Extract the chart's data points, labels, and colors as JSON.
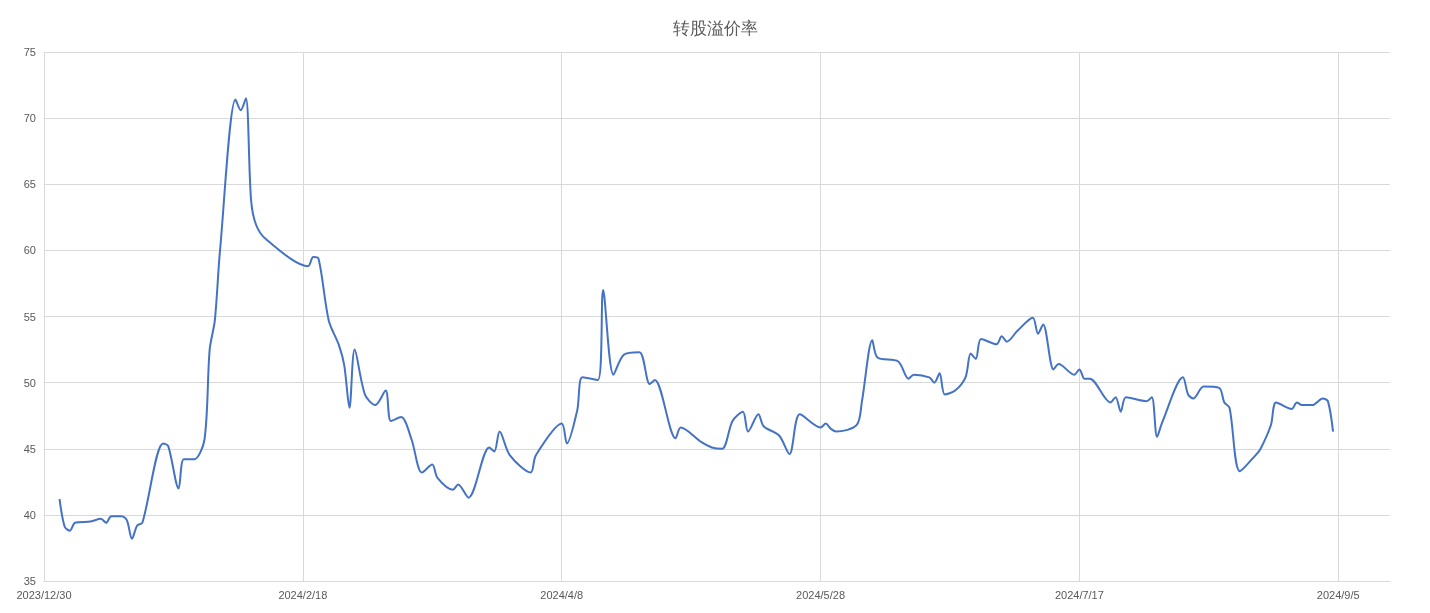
{
  "chart_data": {
    "type": "line",
    "title": "转股溢价率",
    "color": "#4472c4",
    "x": [
      "2024-01-02",
      "2024-01-03",
      "2024-01-04",
      "2024-01-05",
      "2024-01-08",
      "2024-01-10",
      "2024-01-11",
      "2024-01-12",
      "2024-01-14",
      "2024-01-15",
      "2024-01-16",
      "2024-01-17",
      "2024-01-18",
      "2024-01-22",
      "2024-01-23",
      "2024-01-25",
      "2024-01-26",
      "2024-01-28",
      "2024-01-30",
      "2024-01-31",
      "2024-02-01",
      "2024-02-02",
      "2024-02-05",
      "2024-02-06",
      "2024-02-07",
      "2024-02-08",
      "2024-02-09",
      "2024-02-11",
      "2024-02-19",
      "2024-02-20",
      "2024-02-21",
      "2024-02-23",
      "2024-02-25",
      "2024-02-26",
      "2024-02-27",
      "2024-02-28",
      "2024-03-01",
      "2024-03-03",
      "2024-03-05",
      "2024-03-06",
      "2024-03-08",
      "2024-03-10",
      "2024-03-12",
      "2024-03-14",
      "2024-03-15",
      "2024-03-18",
      "2024-03-19",
      "2024-03-21",
      "2024-03-25",
      "2024-03-26",
      "2024-03-27",
      "2024-03-29",
      "2024-04-02",
      "2024-04-03",
      "2024-04-08",
      "2024-04-09",
      "2024-04-11",
      "2024-04-12",
      "2024-04-15",
      "2024-04-16",
      "2024-04-18",
      "2024-04-20",
      "2024-04-23",
      "2024-04-25",
      "2024-04-26",
      "2024-04-30",
      "2024-05-01",
      "2024-05-05",
      "2024-05-07",
      "2024-05-09",
      "2024-05-11",
      "2024-05-13",
      "2024-05-14",
      "2024-05-16",
      "2024-05-17",
      "2024-05-20",
      "2024-05-22",
      "2024-05-24",
      "2024-05-28",
      "2024-05-29",
      "2024-05-30",
      "2024-05-31",
      "2024-06-04",
      "2024-06-05",
      "2024-06-07",
      "2024-06-08",
      "2024-06-12",
      "2024-06-14",
      "2024-06-15",
      "2024-06-18",
      "2024-06-19",
      "2024-06-20",
      "2024-06-21",
      "2024-06-23",
      "2024-06-25",
      "2024-06-26",
      "2024-06-27",
      "2024-06-28",
      "2024-07-01",
      "2024-07-02",
      "2024-07-03",
      "2024-07-05",
      "2024-07-08",
      "2024-07-09",
      "2024-07-10",
      "2024-07-12",
      "2024-07-13",
      "2024-07-16",
      "2024-07-17",
      "2024-07-18",
      "2024-07-19",
      "2024-07-23",
      "2024-07-24",
      "2024-07-25",
      "2024-07-26",
      "2024-07-30",
      "2024-07-31",
      "2024-08-01",
      "2024-08-02",
      "2024-08-06",
      "2024-08-07",
      "2024-08-08",
      "2024-08-10",
      "2024-08-13",
      "2024-08-14",
      "2024-08-15",
      "2024-08-17",
      "2024-08-20",
      "2024-08-21",
      "2024-08-23",
      "2024-08-24",
      "2024-08-27",
      "2024-08-28",
      "2024-08-29",
      "2024-08-31",
      "2024-09-02",
      "2024-09-03",
      "2024-09-04"
    ],
    "values": [
      41.2,
      39.1,
      38.8,
      39.4,
      39.5,
      39.7,
      39.4,
      39.9,
      39.9,
      39.6,
      38.2,
      39.2,
      39.4,
      45.4,
      45.2,
      42.0,
      44.2,
      44.2,
      45.7,
      52.5,
      54.7,
      60.0,
      71.4,
      70.6,
      71.5,
      63.8,
      61.9,
      60.8,
      58.8,
      59.5,
      59.4,
      54.7,
      52.8,
      51.3,
      48.1,
      52.5,
      49.1,
      48.3,
      49.4,
      47.1,
      47.4,
      45.7,
      43.2,
      43.8,
      42.8,
      41.9,
      42.3,
      41.3,
      45.1,
      44.8,
      46.3,
      44.5,
      43.2,
      44.5,
      46.9,
      45.4,
      47.9,
      50.4,
      50.2,
      57.0,
      50.6,
      52.1,
      52.3,
      49.9,
      50.2,
      45.8,
      46.6,
      45.5,
      45.1,
      45.0,
      47.1,
      47.8,
      46.3,
      47.6,
      46.7,
      46.0,
      44.6,
      47.6,
      46.6,
      46.9,
      46.5,
      46.3,
      46.8,
      48.6,
      53.2,
      51.9,
      51.6,
      50.3,
      50.6,
      50.4,
      50.0,
      50.7,
      49.1,
      49.4,
      50.4,
      52.2,
      51.8,
      53.3,
      52.9,
      53.5,
      53.1,
      53.9,
      54.9,
      53.7,
      54.4,
      51.0,
      51.4,
      50.6,
      51.0,
      50.3,
      50.3,
      48.5,
      48.9,
      47.8,
      48.9,
      48.6,
      48.9,
      45.9,
      47.0,
      50.4,
      49.1,
      48.8,
      49.7,
      49.6,
      48.5,
      48.1,
      43.3,
      44.5,
      45.0,
      46.8,
      48.5,
      48.0,
      48.5,
      48.3,
      48.3,
      48.8,
      48.6,
      46.3
    ],
    "xlim": [
      "2023-12-30",
      "2024-09-15"
    ],
    "xticks": [
      {
        "value": "2023-12-30",
        "label": "2023/12/30"
      },
      {
        "value": "2024-02-18",
        "label": "2024/2/18"
      },
      {
        "value": "2024-04-08",
        "label": "2024/4/8"
      },
      {
        "value": "2024-05-28",
        "label": "2024/5/28"
      },
      {
        "value": "2024-07-17",
        "label": "2024/7/17"
      },
      {
        "value": "2024-09-05",
        "label": "2024/9/5"
      }
    ],
    "ylim": [
      35,
      75
    ],
    "yticks": [
      35,
      40,
      45,
      50,
      55,
      60,
      65,
      70,
      75
    ],
    "grid": true,
    "marker": "none"
  }
}
